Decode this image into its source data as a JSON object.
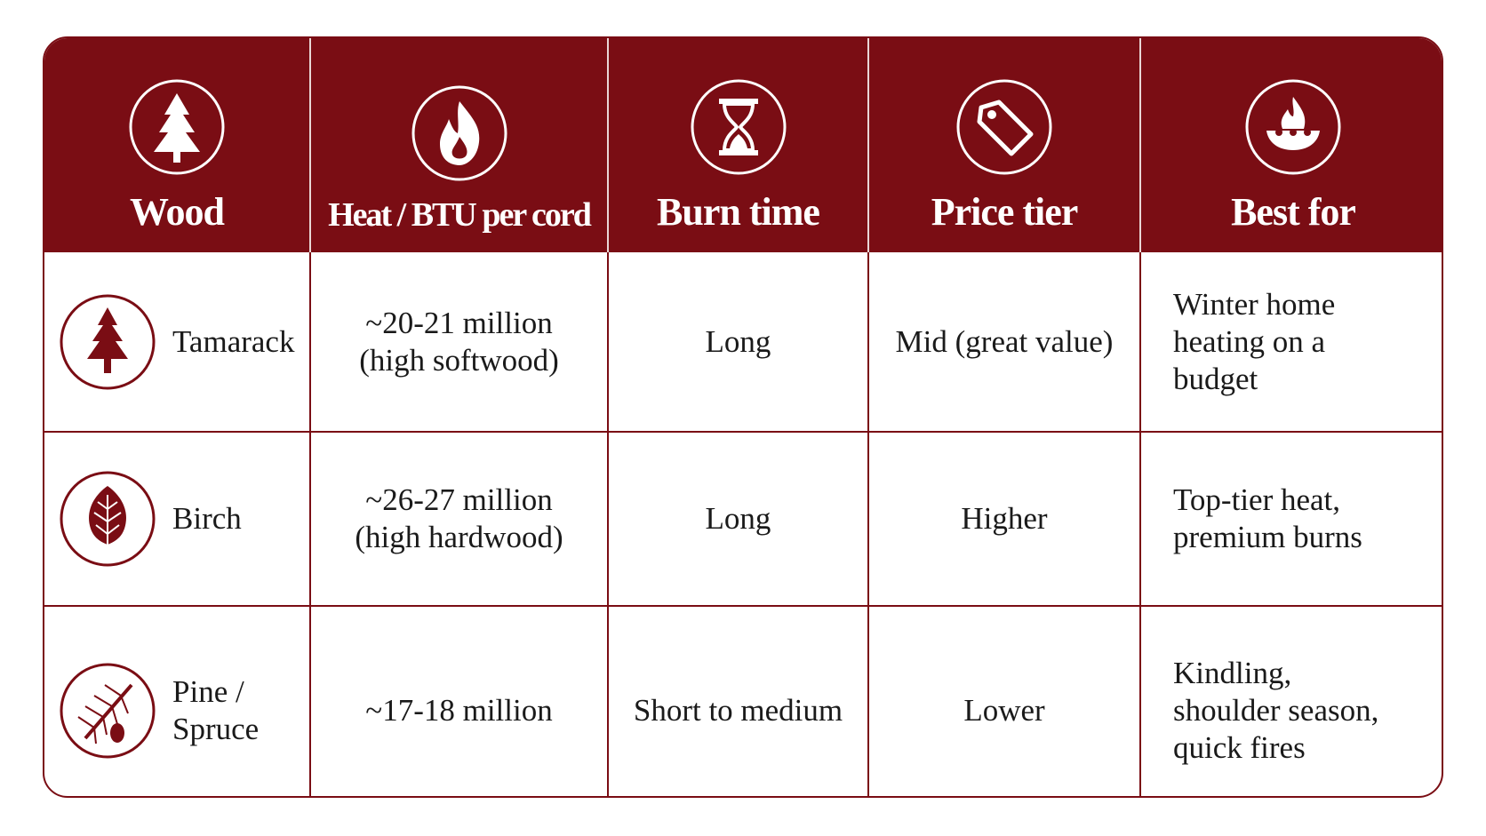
{
  "header": {
    "columns": [
      "Wood",
      "Heat / BTU per cord",
      "Burn time",
      "Price tier",
      "Best for"
    ]
  },
  "table": {
    "rows": [
      [
        "Tamarack",
        "~20-21 million (high softwood)",
        "Long",
        "Mid (great value)",
        "Winter home heating on a budget"
      ],
      [
        "Birch",
        "~26-27 million (high hardwood)",
        "Long",
        "Higher",
        "Top-tier heat, premium burns"
      ],
      [
        "Pine / Spruce",
        "~17-18 million",
        "Short to medium",
        "Lower",
        "Kindling, shoulder season, quick fires"
      ]
    ]
  }
}
